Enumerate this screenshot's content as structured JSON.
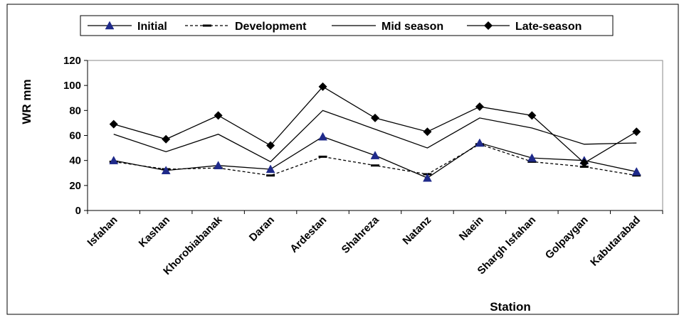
{
  "chart_data": {
    "type": "line",
    "title": "",
    "xlabel": "Station",
    "ylabel": "WR mm",
    "ylim": [
      0,
      120
    ],
    "yticks": [
      0,
      20,
      40,
      60,
      80,
      100,
      120
    ],
    "grid": false,
    "legend_position": "top",
    "categories": [
      "Isfahan",
      "Kashan",
      "Khorobiabanak",
      "Daran",
      "Ardestan",
      "Shahreza",
      "Natanz",
      "Naein",
      "Shargh Isfahan",
      "Golpaygan",
      "Kabutarabad"
    ],
    "series": [
      {
        "name": "Initial",
        "style": "solid-triangle",
        "color": "#1f2a8a",
        "values": [
          40,
          32,
          36,
          33,
          59,
          44,
          26,
          54,
          42,
          40,
          31
        ]
      },
      {
        "name": "Development",
        "style": "dashed-dash",
        "color": "#000000",
        "values": [
          39,
          33,
          34,
          28,
          43,
          36,
          29,
          53,
          39,
          35,
          28
        ]
      },
      {
        "name": "Mid season",
        "style": "solid-plain",
        "color": "#000000",
        "values": [
          61,
          47,
          61,
          39,
          80,
          65,
          50,
          74,
          66,
          53,
          54
        ]
      },
      {
        "name": "Late-season",
        "style": "solid-diamond",
        "color": "#000000",
        "values": [
          69,
          57,
          76,
          52,
          99,
          74,
          63,
          83,
          76,
          38,
          63
        ]
      }
    ]
  }
}
